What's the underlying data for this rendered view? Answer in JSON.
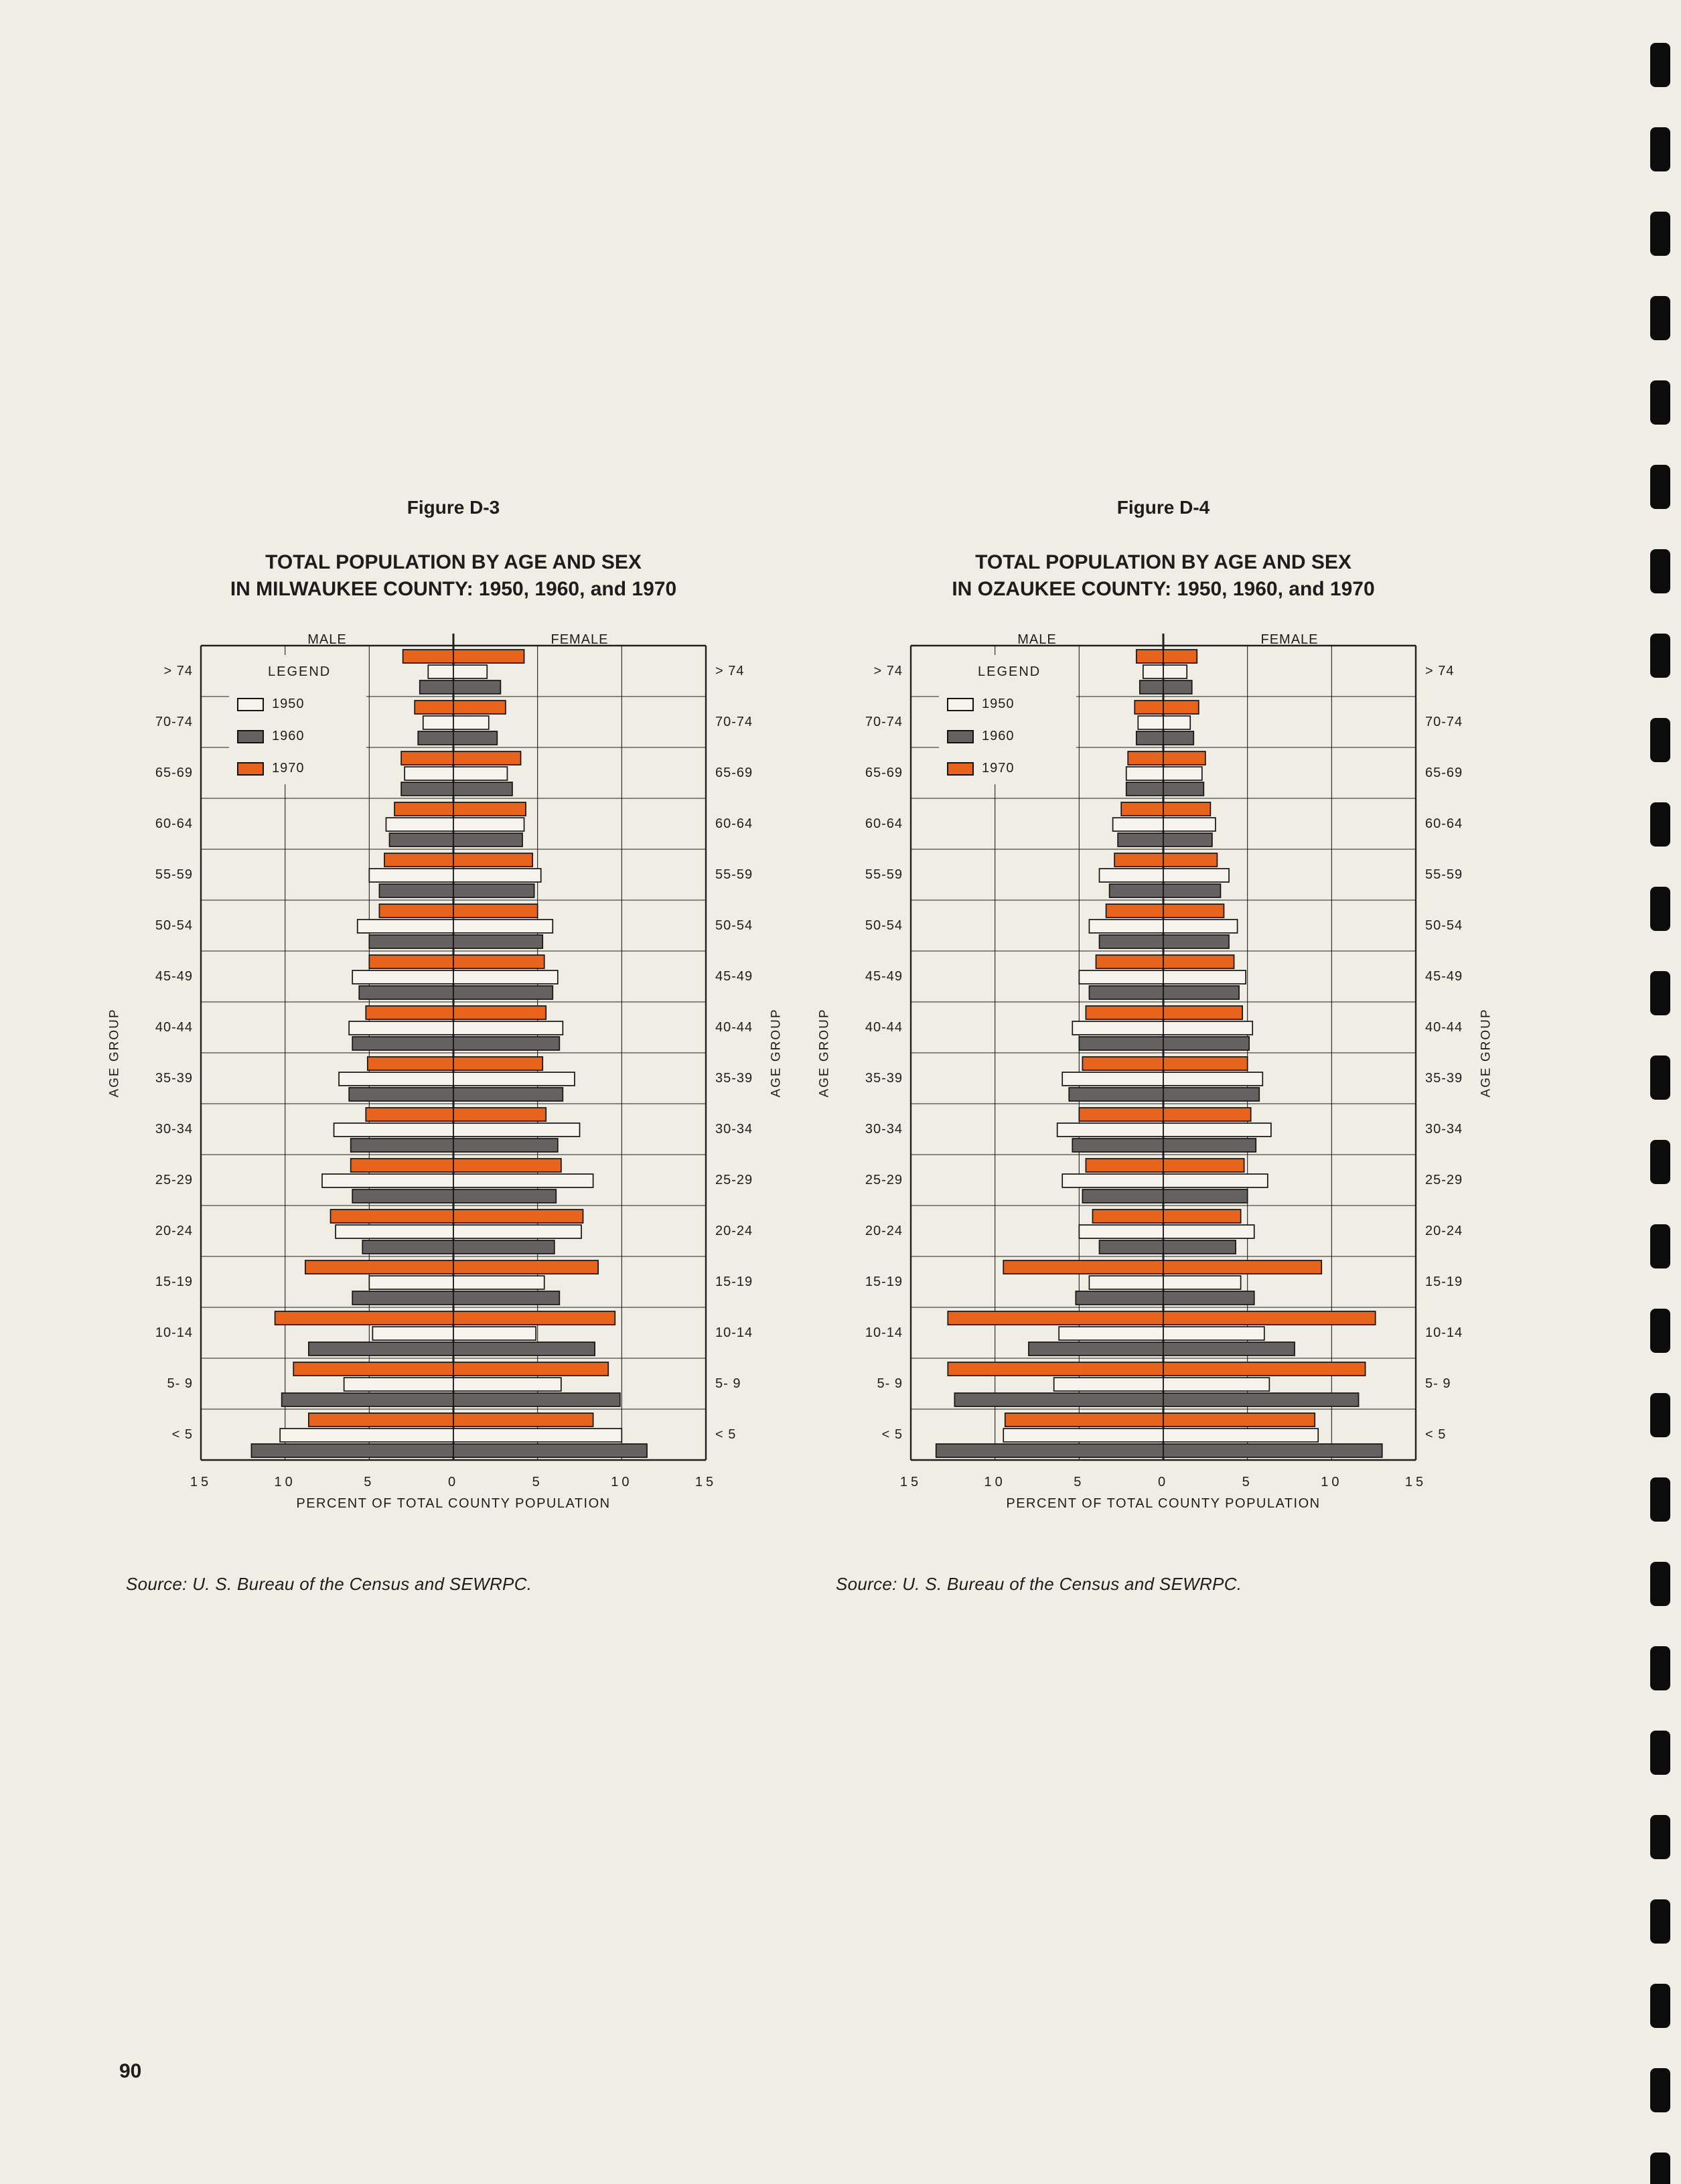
{
  "page": {
    "number": "90"
  },
  "figures": [
    {
      "caption": "Figure D-3",
      "title_line1": "TOTAL POPULATION BY AGE AND SEX",
      "title_line2": "IN MILWAUKEE COUNTY:  1950, 1960, and 1970",
      "source": "Source:  U. S. Bureau of the Census and SEWRPC."
    },
    {
      "caption": "Figure D-4",
      "title_line1": "TOTAL POPULATION BY AGE AND SEX",
      "title_line2": "IN OZAUKEE COUNTY:  1950, 1960, and 1970",
      "source": "Source:  U. S. Bureau of the Census and SEWRPC."
    }
  ],
  "chart_data": [
    {
      "type": "bar",
      "subtype": "population_pyramid",
      "title": "TOTAL POPULATION BY AGE AND SEX IN MILWAUKEE COUNTY: 1950, 1960, and 1970",
      "left_label": "MALE",
      "right_label": "FEMALE",
      "ylabel": "AGE GROUP",
      "xlabel": "PERCENT OF TOTAL COUNTY POPULATION",
      "x_ticks": [
        "15",
        "10",
        "5",
        "0",
        "5",
        "10",
        "15"
      ],
      "axis_max_percent": 15,
      "grid": true,
      "categories": [
        "> 74",
        "70-74",
        "65-69",
        "60-64",
        "55-59",
        "50-54",
        "45-49",
        "40-44",
        "35-39",
        "30-34",
        "25-29",
        "20-24",
        "15-19",
        "10-14",
        "5- 9",
        "< 5"
      ],
      "legend": {
        "title": "LEGEND",
        "entries": [
          {
            "label": "1950",
            "color": "#f6f3ec"
          },
          {
            "label": "1960",
            "color": "#636260"
          },
          {
            "label": "1970",
            "color": "#e8631b"
          }
        ]
      },
      "draw_order": [
        "1970",
        "1950",
        "1960"
      ],
      "series": [
        {
          "name": "1950",
          "color": "#f6f3ec",
          "male": [
            1.5,
            1.8,
            2.9,
            4.0,
            5.0,
            5.7,
            6.0,
            6.2,
            6.8,
            7.1,
            7.8,
            7.0,
            5.0,
            4.8,
            6.5,
            10.3
          ],
          "female": [
            2.0,
            2.1,
            3.2,
            4.2,
            5.2,
            5.9,
            6.2,
            6.5,
            7.2,
            7.5,
            8.3,
            7.6,
            5.4,
            4.9,
            6.4,
            10.0
          ]
        },
        {
          "name": "1960",
          "color": "#636260",
          "male": [
            2.0,
            2.1,
            3.1,
            3.8,
            4.4,
            5.0,
            5.6,
            6.0,
            6.2,
            6.1,
            6.0,
            5.4,
            6.0,
            8.6,
            10.2,
            12.0
          ],
          "female": [
            2.8,
            2.6,
            3.5,
            4.1,
            4.8,
            5.3,
            5.9,
            6.3,
            6.5,
            6.2,
            6.1,
            6.0,
            6.3,
            8.4,
            9.9,
            11.5
          ]
        },
        {
          "name": "1970",
          "color": "#e8631b",
          "male": [
            3.0,
            2.3,
            3.1,
            3.5,
            4.1,
            4.4,
            5.0,
            5.2,
            5.1,
            5.2,
            6.1,
            7.3,
            8.8,
            10.6,
            9.5,
            8.6
          ],
          "female": [
            4.2,
            3.1,
            4.0,
            4.3,
            4.7,
            5.0,
            5.4,
            5.5,
            5.3,
            5.5,
            6.4,
            7.7,
            8.6,
            9.6,
            9.2,
            8.3
          ]
        }
      ]
    },
    {
      "type": "bar",
      "subtype": "population_pyramid",
      "title": "TOTAL POPULATION BY AGE AND SEX IN OZAUKEE COUNTY: 1950, 1960, and 1970",
      "left_label": "MALE",
      "right_label": "FEMALE",
      "ylabel": "AGE GROUP",
      "xlabel": "PERCENT OF TOTAL COUNTY POPULATION",
      "x_ticks": [
        "15",
        "10",
        "5",
        "0",
        "5",
        "10",
        "15"
      ],
      "axis_max_percent": 15,
      "grid": true,
      "categories": [
        "> 74",
        "70-74",
        "65-69",
        "60-64",
        "55-59",
        "50-54",
        "45-49",
        "40-44",
        "35-39",
        "30-34",
        "25-29",
        "20-24",
        "15-19",
        "10-14",
        "5- 9",
        "< 5"
      ],
      "legend": {
        "title": "LEGEND",
        "entries": [
          {
            "label": "1950",
            "color": "#f6f3ec"
          },
          {
            "label": "1960",
            "color": "#636260"
          },
          {
            "label": "1970",
            "color": "#e8631b"
          }
        ]
      },
      "draw_order": [
        "1970",
        "1950",
        "1960"
      ],
      "series": [
        {
          "name": "1950",
          "color": "#f6f3ec",
          "male": [
            1.2,
            1.5,
            2.2,
            3.0,
            3.8,
            4.4,
            5.0,
            5.4,
            6.0,
            6.3,
            6.0,
            5.0,
            4.4,
            6.2,
            6.5,
            9.5
          ],
          "female": [
            1.4,
            1.6,
            2.3,
            3.1,
            3.9,
            4.4,
            4.9,
            5.3,
            5.9,
            6.4,
            6.2,
            5.4,
            4.6,
            6.0,
            6.3,
            9.2
          ]
        },
        {
          "name": "1960",
          "color": "#636260",
          "male": [
            1.4,
            1.6,
            2.2,
            2.7,
            3.2,
            3.8,
            4.4,
            5.0,
            5.6,
            5.4,
            4.8,
            3.8,
            5.2,
            8.0,
            12.4,
            13.5
          ],
          "female": [
            1.7,
            1.8,
            2.4,
            2.9,
            3.4,
            3.9,
            4.5,
            5.1,
            5.7,
            5.5,
            5.0,
            4.3,
            5.4,
            7.8,
            11.6,
            13.0
          ]
        },
        {
          "name": "1970",
          "color": "#e8631b",
          "male": [
            1.6,
            1.7,
            2.1,
            2.5,
            2.9,
            3.4,
            4.0,
            4.6,
            4.8,
            5.0,
            4.6,
            4.2,
            9.5,
            12.8,
            12.8,
            9.4
          ],
          "female": [
            2.0,
            2.1,
            2.5,
            2.8,
            3.2,
            3.6,
            4.2,
            4.7,
            5.0,
            5.2,
            4.8,
            4.6,
            9.4,
            12.6,
            12.0,
            9.0
          ]
        }
      ]
    }
  ]
}
